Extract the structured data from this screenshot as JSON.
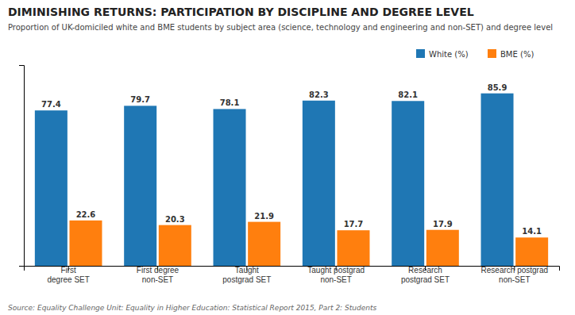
{
  "chart_data": {
    "type": "bar",
    "title": "DIMINISHING RETURNS: PARTICIPATION BY DISCIPLINE AND DEGREE LEVEL",
    "subtitle": "Proportion of UK-domiciled white and BME students by subject area (science, technology and engineering and non-SET) and degree level",
    "source": "Source: Equality Challenge Unit: Equality in Higher Education: Statistical Report 2015, Part 2: Students",
    "categories": [
      "First\ndegree SET",
      "First degree\nnon-SET",
      "Taught\npostgrad SET",
      "Taught postgrad\nnon-SET",
      "Research\npostgrad SET",
      "Research postgrad\nnon-SET"
    ],
    "series": [
      {
        "name": "White (%)",
        "values": [
          77.4,
          79.7,
          78.1,
          82.3,
          82.1,
          85.9
        ]
      },
      {
        "name": "BME (%)",
        "values": [
          22.6,
          20.3,
          21.9,
          17.7,
          17.9,
          14.1
        ]
      }
    ],
    "ylim": [
      0,
      100
    ],
    "yticks": [],
    "tick_labels": "x",
    "data_labels": true,
    "legend": "upper right"
  }
}
